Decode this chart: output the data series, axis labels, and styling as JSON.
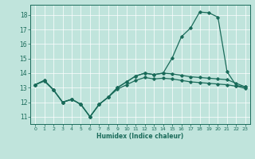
{
  "xlabel": "Humidex (Indice chaleur)",
  "bg_color": "#c0e4dc",
  "line_color": "#1a6b5a",
  "grid_color": "#ffffff",
  "xlim": [
    -0.5,
    23.5
  ],
  "ylim": [
    10.5,
    18.7
  ],
  "yticks": [
    11,
    12,
    13,
    14,
    15,
    16,
    17,
    18
  ],
  "xticks": [
    0,
    1,
    2,
    3,
    4,
    5,
    6,
    7,
    8,
    9,
    10,
    11,
    12,
    13,
    14,
    15,
    16,
    17,
    18,
    19,
    20,
    21,
    22,
    23
  ],
  "line_spike": {
    "x": [
      0,
      1,
      2,
      3,
      4,
      5,
      6,
      7,
      8,
      9,
      10,
      11,
      12,
      13,
      14,
      15,
      16,
      17,
      18,
      19,
      20,
      21,
      22,
      23
    ],
    "y": [
      13.2,
      13.5,
      12.85,
      12.0,
      12.2,
      11.85,
      11.0,
      11.85,
      12.35,
      13.0,
      13.4,
      13.8,
      14.0,
      13.9,
      14.0,
      15.05,
      16.5,
      17.1,
      18.2,
      18.15,
      17.85,
      14.1,
      13.15,
      13.05
    ]
  },
  "line_upper": {
    "x": [
      0,
      1,
      2,
      3,
      4,
      5,
      6,
      7,
      8,
      9,
      10,
      11,
      12,
      13,
      14,
      15,
      16,
      17,
      18,
      19,
      20,
      21,
      22,
      23
    ],
    "y": [
      13.2,
      13.5,
      12.85,
      12.0,
      12.2,
      11.85,
      11.0,
      11.85,
      12.35,
      13.0,
      13.4,
      13.8,
      14.0,
      13.9,
      14.0,
      13.95,
      13.85,
      13.75,
      13.7,
      13.65,
      13.6,
      13.55,
      13.3,
      13.05
    ]
  },
  "line_lower": {
    "x": [
      0,
      1,
      2,
      3,
      4,
      5,
      6,
      7,
      8,
      9,
      10,
      11,
      12,
      13,
      14,
      15,
      16,
      17,
      18,
      19,
      20,
      21,
      22,
      23
    ],
    "y": [
      13.2,
      13.45,
      12.85,
      12.0,
      12.2,
      11.85,
      11.0,
      11.85,
      12.35,
      12.9,
      13.2,
      13.5,
      13.7,
      13.6,
      13.65,
      13.6,
      13.5,
      13.4,
      13.35,
      13.3,
      13.25,
      13.2,
      13.1,
      12.95
    ]
  }
}
